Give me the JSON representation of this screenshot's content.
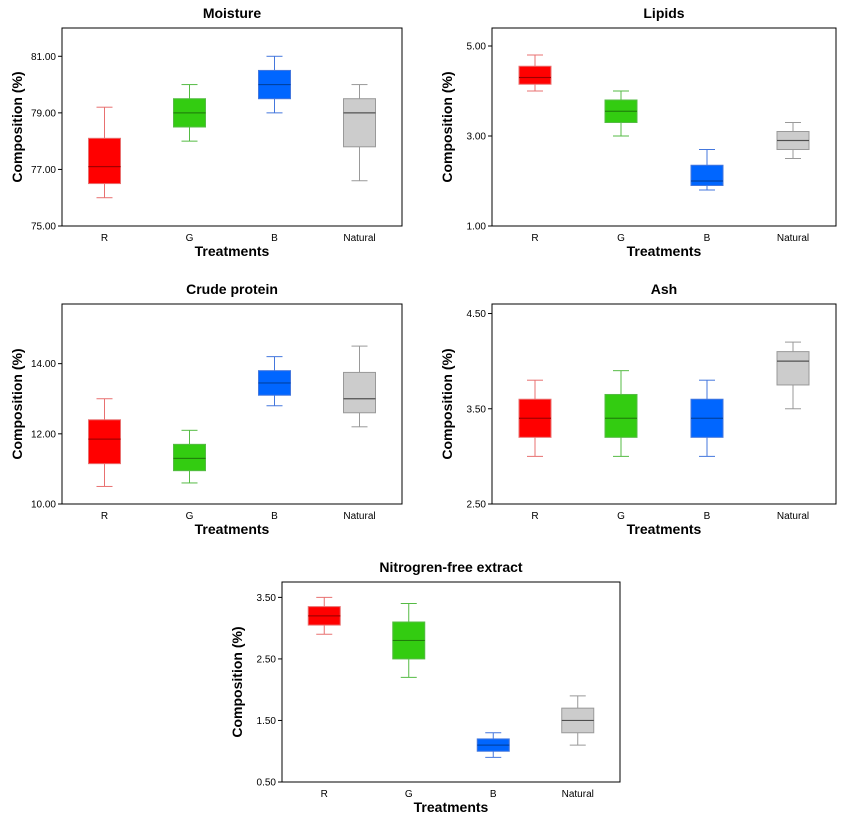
{
  "chart_data": [
    {
      "type": "box",
      "title": "Moisture",
      "xlabel": "Treatments",
      "ylabel": "Composition (%)",
      "ylim": [
        75.0,
        82.0
      ],
      "yticks": [
        "75.00",
        "77.00",
        "79.00",
        "81.00"
      ],
      "categories": [
        "R",
        "G",
        "B",
        "Natural"
      ],
      "boxes": [
        {
          "min": 76.0,
          "q1": 76.5,
          "median": 77.1,
          "q3": 78.1,
          "max": 79.2
        },
        {
          "min": 78.0,
          "q1": 78.5,
          "median": 79.0,
          "q3": 79.5,
          "max": 80.0
        },
        {
          "min": 79.0,
          "q1": 79.5,
          "median": 80.0,
          "q3": 80.5,
          "max": 81.0
        },
        {
          "min": 76.6,
          "q1": 77.8,
          "median": 79.0,
          "q3": 79.5,
          "max": 80.0
        }
      ]
    },
    {
      "type": "box",
      "title": "Lipids",
      "xlabel": "Treatments",
      "ylabel": "Composition (%)",
      "ylim": [
        1.0,
        5.4
      ],
      "yticks": [
        "1.00",
        "3.00",
        "5.00"
      ],
      "categories": [
        "R",
        "G",
        "B",
        "Natural"
      ],
      "boxes": [
        {
          "min": 4.0,
          "q1": 4.15,
          "median": 4.3,
          "q3": 4.55,
          "max": 4.8
        },
        {
          "min": 3.0,
          "q1": 3.3,
          "median": 3.55,
          "q3": 3.8,
          "max": 4.0
        },
        {
          "min": 1.8,
          "q1": 1.9,
          "median": 2.0,
          "q3": 2.35,
          "max": 2.7
        },
        {
          "min": 2.5,
          "q1": 2.7,
          "median": 2.9,
          "q3": 3.1,
          "max": 3.3
        }
      ]
    },
    {
      "type": "box",
      "title": "Crude protein",
      "xlabel": "Treatments",
      "ylabel": "Composition (%)",
      "ylim": [
        10.0,
        15.7
      ],
      "yticks": [
        "10.00",
        "12.00",
        "14.00"
      ],
      "categories": [
        "R",
        "G",
        "B",
        "Natural"
      ],
      "boxes": [
        {
          "min": 10.5,
          "q1": 11.15,
          "median": 11.85,
          "q3": 12.4,
          "max": 13.0
        },
        {
          "min": 10.6,
          "q1": 10.95,
          "median": 11.3,
          "q3": 11.7,
          "max": 12.1
        },
        {
          "min": 12.8,
          "q1": 13.1,
          "median": 13.45,
          "q3": 13.8,
          "max": 14.2
        },
        {
          "min": 12.2,
          "q1": 12.6,
          "median": 13.0,
          "q3": 13.75,
          "max": 14.5
        }
      ]
    },
    {
      "type": "box",
      "title": "Ash",
      "xlabel": "Treatments",
      "ylabel": "Composition (%)",
      "ylim": [
        2.5,
        4.6
      ],
      "yticks": [
        "2.50",
        "3.50",
        "4.50"
      ],
      "categories": [
        "R",
        "G",
        "B",
        "Natural"
      ],
      "boxes": [
        {
          "min": 3.0,
          "q1": 3.2,
          "median": 3.4,
          "q3": 3.6,
          "max": 3.8
        },
        {
          "min": 3.0,
          "q1": 3.2,
          "median": 3.4,
          "q3": 3.65,
          "max": 3.9
        },
        {
          "min": 3.0,
          "q1": 3.2,
          "median": 3.4,
          "q3": 3.6,
          "max": 3.8
        },
        {
          "min": 3.5,
          "q1": 3.75,
          "median": 4.0,
          "q3": 4.1,
          "max": 4.2
        }
      ]
    },
    {
      "type": "box",
      "title": "Nitrogren-free extract",
      "xlabel": "Treatments",
      "ylabel": "Composition (%)",
      "ylim": [
        0.5,
        3.75
      ],
      "yticks": [
        "0.50",
        "1.50",
        "2.50",
        "3.50"
      ],
      "categories": [
        "R",
        "G",
        "B",
        "Natural"
      ],
      "boxes": [
        {
          "min": 2.9,
          "q1": 3.05,
          "median": 3.2,
          "q3": 3.35,
          "max": 3.5
        },
        {
          "min": 2.2,
          "q1": 2.5,
          "median": 2.8,
          "q3": 3.1,
          "max": 3.4
        },
        {
          "min": 0.9,
          "q1": 1.0,
          "median": 1.1,
          "q3": 1.2,
          "max": 1.3
        },
        {
          "min": 1.1,
          "q1": 1.3,
          "median": 1.5,
          "q3": 1.7,
          "max": 1.9
        }
      ]
    }
  ],
  "colors": {
    "R": {
      "fill": "#ff0000",
      "line": "#e87070"
    },
    "G": {
      "fill": "#33cc11",
      "line": "#55bb44"
    },
    "B": {
      "fill": "#0066ff",
      "line": "#4477dd"
    },
    "Natural": {
      "fill": "#cccccc",
      "line": "#999999"
    }
  }
}
